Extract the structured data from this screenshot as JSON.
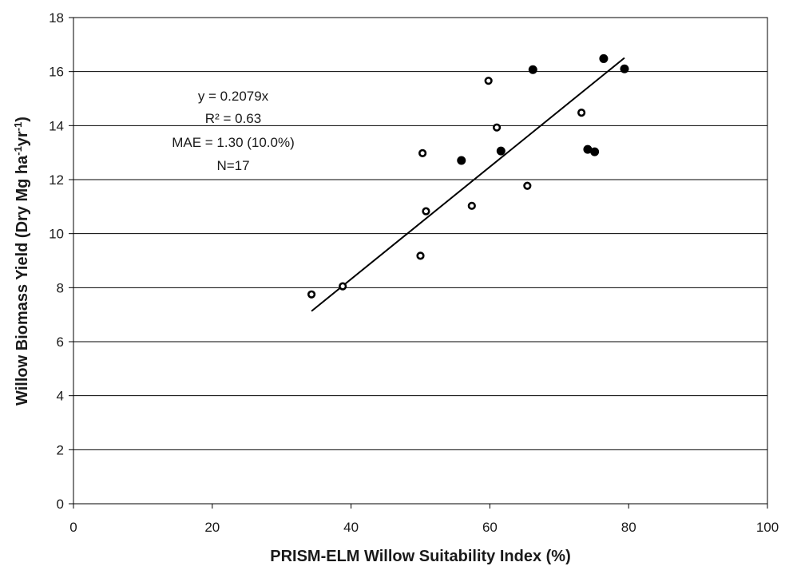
{
  "chart_data": {
    "type": "scatter",
    "xlabel": "PRISM-ELM Willow Suitability Index (%)",
    "ylabel_parts": [
      "Willow Biomass Yield (Dry Mg ha",
      "-1",
      "yr",
      "-1",
      ")"
    ],
    "xlim": [
      0,
      100
    ],
    "ylim": [
      0,
      18
    ],
    "x_ticks": [
      0,
      20,
      40,
      60,
      80,
      100
    ],
    "y_ticks": [
      0,
      2,
      4,
      6,
      8,
      10,
      12,
      14,
      16,
      18
    ],
    "grid": "horizontal",
    "annotations": [
      "y = 0.2079x",
      "R² = 0.63",
      "MAE = 1.30 (10.0%)",
      "N=17"
    ],
    "series": [
      {
        "marker": "open-circle",
        "color": "#000000",
        "points": [
          {
            "x": 34.3,
            "y": 7.75
          },
          {
            "x": 38.8,
            "y": 8.05
          },
          {
            "x": 50.0,
            "y": 9.18
          },
          {
            "x": 50.3,
            "y": 12.98
          },
          {
            "x": 50.8,
            "y": 10.83
          },
          {
            "x": 57.4,
            "y": 11.03
          },
          {
            "x": 59.8,
            "y": 15.66
          },
          {
            "x": 61.0,
            "y": 13.93
          },
          {
            "x": 65.4,
            "y": 11.77
          },
          {
            "x": 73.2,
            "y": 14.48
          }
        ]
      },
      {
        "marker": "filled-circle",
        "color": "#000000",
        "points": [
          {
            "x": 55.9,
            "y": 12.71
          },
          {
            "x": 61.6,
            "y": 13.06
          },
          {
            "x": 66.2,
            "y": 16.07
          },
          {
            "x": 74.1,
            "y": 13.12
          },
          {
            "x": 75.1,
            "y": 13.03
          },
          {
            "x": 76.4,
            "y": 16.48
          },
          {
            "x": 79.4,
            "y": 16.1
          }
        ]
      }
    ],
    "trendline": {
      "slope": 0.2079,
      "x_range": [
        34.3,
        79.4
      ],
      "color": "#000000"
    }
  }
}
